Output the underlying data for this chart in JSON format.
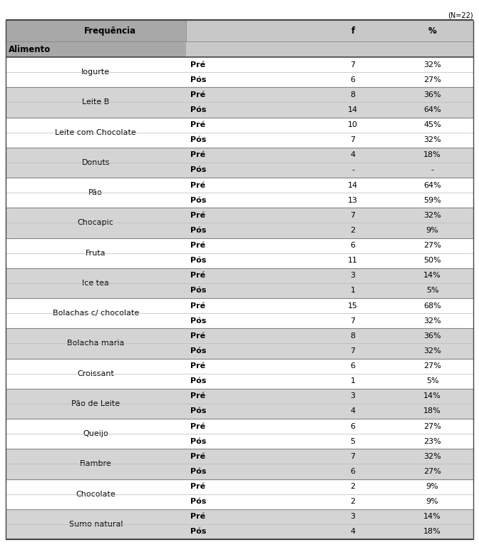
{
  "top_right_text": "(N=22)",
  "col_headers": [
    "Frequência",
    "f",
    "%"
  ],
  "row_header": "Alimento",
  "rows": [
    {
      "alimento": "Iogurte",
      "pre_f": "7",
      "pre_pct": "32%",
      "pos_f": "6",
      "pos_pct": "27%"
    },
    {
      "alimento": "Leite B",
      "pre_f": "8",
      "pre_pct": "36%",
      "pos_f": "14",
      "pos_pct": "64%"
    },
    {
      "alimento": "Leite com Chocolate",
      "pre_f": "10",
      "pre_pct": "45%",
      "pos_f": "7",
      "pos_pct": "32%"
    },
    {
      "alimento": "Donuts",
      "pre_f": "4",
      "pre_pct": "18%",
      "pos_f": "-",
      "pos_pct": "-"
    },
    {
      "alimento": "Pão",
      "pre_f": "14",
      "pre_pct": "64%",
      "pos_f": "13",
      "pos_pct": "59%"
    },
    {
      "alimento": "Chocapic",
      "pre_f": "7",
      "pre_pct": "32%",
      "pos_f": "2",
      "pos_pct": "9%"
    },
    {
      "alimento": "Fruta",
      "pre_f": "6",
      "pre_pct": "27%",
      "pos_f": "11",
      "pos_pct": "50%"
    },
    {
      "alimento": "Ice tea",
      "pre_f": "3",
      "pre_pct": "14%",
      "pos_f": "1",
      "pos_pct": "5%"
    },
    {
      "alimento": "Bolachas c/ chocolate",
      "pre_f": "15",
      "pre_pct": "68%",
      "pos_f": "7",
      "pos_pct": "32%"
    },
    {
      "alimento": "Bolacha maria",
      "pre_f": "8",
      "pre_pct": "36%",
      "pos_f": "7",
      "pos_pct": "32%"
    },
    {
      "alimento": "Croissant",
      "pre_f": "6",
      "pre_pct": "27%",
      "pos_f": "1",
      "pos_pct": "5%"
    },
    {
      "alimento": "Pão de Leite",
      "pre_f": "3",
      "pre_pct": "14%",
      "pos_f": "4",
      "pos_pct": "18%"
    },
    {
      "alimento": "Queijo",
      "pre_f": "6",
      "pre_pct": "27%",
      "pos_f": "5",
      "pos_pct": "23%"
    },
    {
      "alimento": "Fiambre",
      "pre_f": "7",
      "pre_pct": "32%",
      "pos_f": "6",
      "pos_pct": "27%"
    },
    {
      "alimento": "Chocolate",
      "pre_f": "2",
      "pre_pct": "9%",
      "pos_f": "2",
      "pos_pct": "9%"
    },
    {
      "alimento": "Sumo natural",
      "pre_f": "3",
      "pre_pct": "14%",
      "pos_f": "4",
      "pos_pct": "18%"
    }
  ],
  "header_bg_dark": "#a8a8a8",
  "header_bg_light": "#c8c8c8",
  "row_bg_gray": "#d4d4d4",
  "row_bg_white": "#ffffff",
  "line_color_dark": "#444444",
  "line_color_mid": "#888888",
  "line_color_light": "#bbbbbb",
  "pre_label": "Pré",
  "pos_label": "Pós",
  "font_size_header": 8.5,
  "font_size_body": 8.0,
  "font_size_small": 7.0,
  "col_breaks": [
    0.385,
    0.66,
    0.825
  ]
}
